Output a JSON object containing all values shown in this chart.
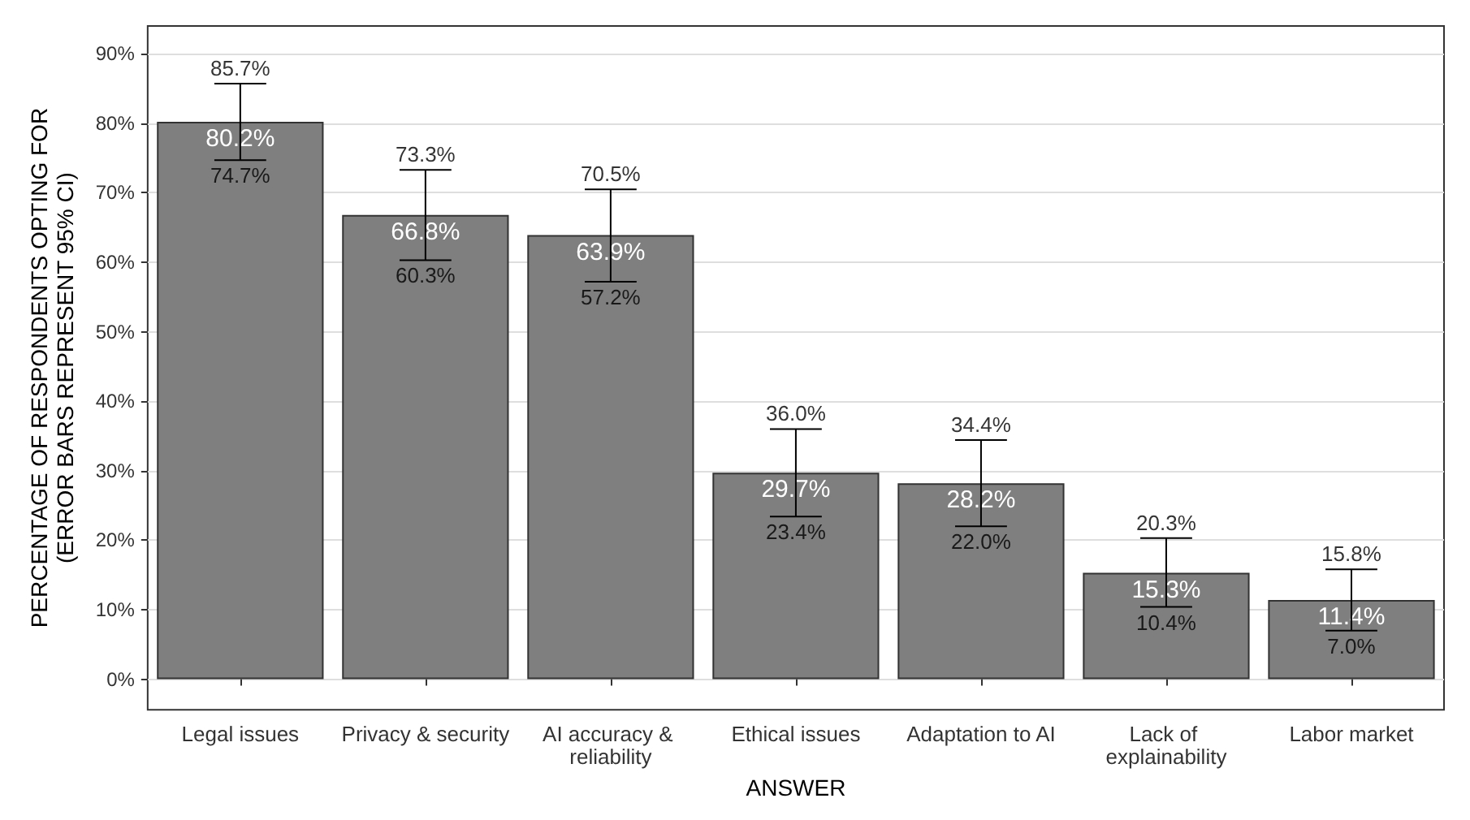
{
  "chart_data": {
    "type": "bar",
    "xlabel": "ANSWER",
    "ylabel": "PERCENTAGE OF RESPONDENTS OPTING FOR\n(ERROR BARS REPRESENT 95% CI)",
    "categories": [
      "Legal issues",
      "Privacy & security",
      "AI accuracy & reliability",
      "Ethical issues",
      "Adaptation to AI",
      "Lack of explainability",
      "Labor market"
    ],
    "values": [
      80.2,
      66.8,
      63.9,
      29.7,
      28.2,
      15.3,
      11.4
    ],
    "value_labels": [
      "80.2%",
      "66.8%",
      "63.9%",
      "29.7%",
      "28.2%",
      "15.3%",
      "11.4%"
    ],
    "errors": [
      [
        74.7,
        85.7
      ],
      [
        60.3,
        73.3
      ],
      [
        57.2,
        70.5
      ],
      [
        23.4,
        36.0
      ],
      [
        22.0,
        34.4
      ],
      [
        10.4,
        20.3
      ],
      [
        7.0,
        15.8
      ]
    ],
    "color": "#7f7f7f",
    "ylim": [
      -4.4,
      94
    ],
    "yticks": [
      {
        "value": 0,
        "label": "0%"
      },
      {
        "value": 10,
        "label": "10%"
      },
      {
        "value": 20,
        "label": "20%"
      },
      {
        "value": 30,
        "label": "30%"
      },
      {
        "value": 40,
        "label": "40%"
      },
      {
        "value": 50,
        "label": "50%"
      },
      {
        "value": 60,
        "label": "60%"
      },
      {
        "value": 70,
        "label": "70%"
      },
      {
        "value": 80,
        "label": "80%"
      },
      {
        "value": 90,
        "label": "90%"
      }
    ],
    "grid": "y",
    "annotations": [
      {
        "text": "85.7%",
        "x": "Legal issues",
        "y": 85.7
      },
      {
        "text": "74.7%",
        "x": "Legal issues",
        "y": 74.7
      },
      {
        "text": "73.3%",
        "x": "Privacy & security",
        "y": 73.3
      },
      {
        "text": "60.3%",
        "x": "Privacy & security",
        "y": 60.3
      },
      {
        "text": "70.5%",
        "x": "AI accuracy & reliability",
        "y": 70.5
      },
      {
        "text": "57.2%",
        "x": "AI accuracy & reliability",
        "y": 57.2
      },
      {
        "text": "36.0%",
        "x": "Ethical issues",
        "y": 36.0
      },
      {
        "text": "23.4%",
        "x": "Ethical issues",
        "y": 23.4
      },
      {
        "text": "34.4%",
        "x": "Adaptation to AI",
        "y": 34.4
      },
      {
        "text": "22.0%",
        "x": "Adaptation to AI",
        "y": 22.0
      },
      {
        "text": "20.3%",
        "x": "Lack of explainability",
        "y": 20.3
      },
      {
        "text": "10.4%",
        "x": "Lack of explainability",
        "y": 10.4
      },
      {
        "text": "15.8%",
        "x": "Labor market",
        "y": 15.8
      },
      {
        "text": "7.0%",
        "x": "Labor market",
        "y": 7.0
      }
    ]
  }
}
